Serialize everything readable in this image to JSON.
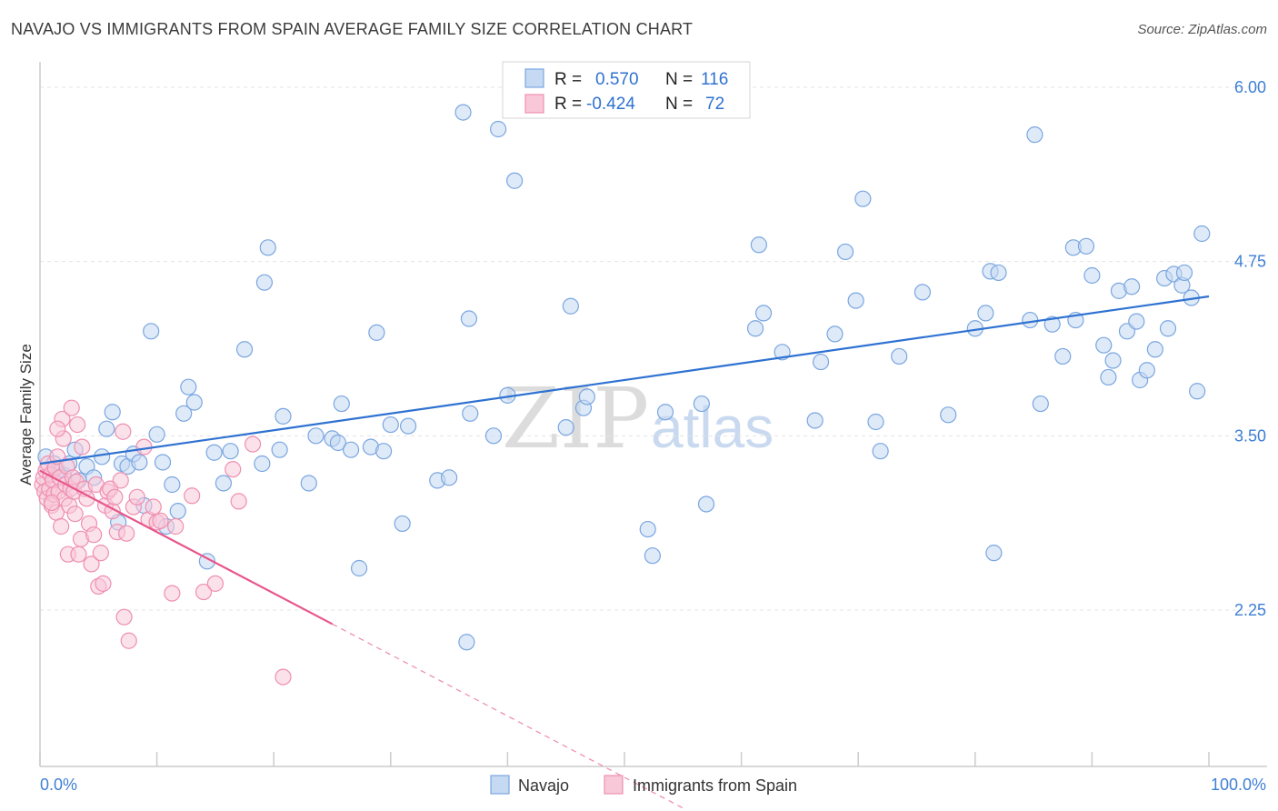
{
  "title": "NAVAJO VS IMMIGRANTS FROM SPAIN AVERAGE FAMILY SIZE CORRELATION CHART",
  "source": "Source: ZipAtlas.com",
  "watermark": {
    "zip": "ZIP",
    "atlas": "atlas"
  },
  "legend": {
    "rows": [
      {
        "r_label": "R =",
        "r_value": "0.570",
        "n_label": "N =",
        "n_value": "116"
      },
      {
        "r_label": "R =",
        "r_value": "-0.424",
        "n_label": "N =",
        "n_value": "72"
      }
    ]
  },
  "bottom_legend": [
    "Navajo",
    "Immigrants from Spain"
  ],
  "chart_data": {
    "type": "scatter",
    "title": "NAVAJO VS IMMIGRANTS FROM SPAIN AVERAGE FAMILY SIZE CORRELATION CHART",
    "xlabel": "",
    "ylabel": "Average Family Size",
    "xlim": [
      0,
      100
    ],
    "ylim": [
      1.0,
      6.25
    ],
    "x_tick_labels": [
      "0.0%",
      "100.0%"
    ],
    "y_ticks": [
      2.25,
      3.5,
      4.75,
      6.0
    ],
    "y_tick_labels": [
      "2.25",
      "3.50",
      "4.75",
      "6.00"
    ],
    "series": [
      {
        "name": "Navajo",
        "color": "#7aa6e0",
        "fill": "#c5d9f3",
        "trend": {
          "x": [
            0,
            100
          ],
          "y": [
            3.3,
            4.5
          ],
          "color": "#2f72d1"
        },
        "points": [
          [
            0.5,
            3.35
          ],
          [
            1.2,
            3.3
          ],
          [
            1.5,
            3.25
          ],
          [
            2.0,
            3.22
          ],
          [
            2.5,
            3.3
          ],
          [
            3.0,
            3.4
          ],
          [
            3.3,
            3.18
          ],
          [
            4.0,
            3.28
          ],
          [
            4.6,
            3.2
          ],
          [
            5.3,
            3.35
          ],
          [
            5.7,
            3.55
          ],
          [
            6.2,
            3.67
          ],
          [
            6.7,
            2.88
          ],
          [
            7.0,
            3.3
          ],
          [
            7.5,
            3.28
          ],
          [
            8.0,
            3.37
          ],
          [
            8.5,
            3.31
          ],
          [
            8.9,
            3.0
          ],
          [
            9.5,
            4.25
          ],
          [
            10.0,
            3.51
          ],
          [
            10.5,
            3.31
          ],
          [
            10.8,
            2.85
          ],
          [
            11.3,
            3.15
          ],
          [
            11.8,
            2.96
          ],
          [
            12.3,
            3.66
          ],
          [
            12.7,
            3.85
          ],
          [
            13.2,
            3.74
          ],
          [
            14.3,
            2.6
          ],
          [
            14.9,
            3.38
          ],
          [
            15.7,
            3.16
          ],
          [
            16.3,
            3.39
          ],
          [
            17.5,
            4.12
          ],
          [
            19.0,
            3.3
          ],
          [
            19.2,
            4.6
          ],
          [
            19.5,
            4.85
          ],
          [
            20.5,
            3.4
          ],
          [
            20.8,
            3.64
          ],
          [
            23.0,
            3.16
          ],
          [
            23.6,
            3.5
          ],
          [
            25.0,
            3.48
          ],
          [
            25.5,
            3.45
          ],
          [
            25.8,
            3.73
          ],
          [
            26.6,
            3.4
          ],
          [
            27.3,
            2.55
          ],
          [
            28.3,
            3.42
          ],
          [
            28.8,
            4.24
          ],
          [
            30.0,
            3.58
          ],
          [
            29.4,
            3.39
          ],
          [
            31.0,
            2.87
          ],
          [
            31.5,
            3.57
          ],
          [
            34.0,
            3.18
          ],
          [
            35.0,
            3.2
          ],
          [
            36.5,
            2.02
          ],
          [
            36.8,
            3.66
          ],
          [
            36.7,
            4.34
          ],
          [
            36.2,
            5.82
          ],
          [
            38.8,
            3.5
          ],
          [
            39.2,
            5.7
          ],
          [
            40.0,
            3.79
          ],
          [
            40.6,
            5.33
          ],
          [
            45.0,
            3.56
          ],
          [
            45.4,
            4.43
          ],
          [
            46.5,
            3.7
          ],
          [
            46.8,
            3.78
          ],
          [
            52.0,
            2.83
          ],
          [
            52.4,
            2.64
          ],
          [
            53.5,
            3.67
          ],
          [
            56.6,
            3.73
          ],
          [
            57.0,
            3.01
          ],
          [
            61.2,
            4.27
          ],
          [
            61.5,
            4.87
          ],
          [
            61.9,
            4.38
          ],
          [
            63.5,
            4.1
          ],
          [
            66.3,
            3.61
          ],
          [
            66.8,
            4.03
          ],
          [
            68.0,
            4.23
          ],
          [
            68.9,
            4.82
          ],
          [
            69.8,
            4.47
          ],
          [
            70.4,
            5.2
          ],
          [
            71.5,
            3.6
          ],
          [
            71.9,
            3.39
          ],
          [
            73.5,
            4.07
          ],
          [
            75.5,
            4.53
          ],
          [
            77.7,
            3.65
          ],
          [
            80.0,
            4.27
          ],
          [
            80.9,
            4.38
          ],
          [
            81.3,
            4.68
          ],
          [
            82.0,
            4.67
          ],
          [
            81.6,
            2.66
          ],
          [
            84.7,
            4.33
          ],
          [
            85.1,
            5.66
          ],
          [
            85.6,
            3.73
          ],
          [
            86.6,
            4.3
          ],
          [
            87.5,
            4.07
          ],
          [
            88.4,
            4.85
          ],
          [
            88.6,
            4.33
          ],
          [
            89.5,
            4.86
          ],
          [
            90.0,
            4.65
          ],
          [
            91.0,
            4.15
          ],
          [
            91.4,
            3.92
          ],
          [
            91.8,
            4.04
          ],
          [
            92.3,
            4.54
          ],
          [
            93.0,
            4.25
          ],
          [
            93.4,
            4.57
          ],
          [
            94.1,
            3.9
          ],
          [
            94.7,
            3.97
          ],
          [
            95.4,
            4.12
          ],
          [
            96.5,
            4.27
          ],
          [
            96.2,
            4.63
          ],
          [
            97.0,
            4.66
          ],
          [
            97.7,
            4.58
          ],
          [
            97.9,
            4.67
          ],
          [
            98.5,
            4.49
          ],
          [
            99.0,
            3.82
          ],
          [
            99.4,
            4.95
          ],
          [
            93.8,
            4.32
          ]
        ]
      },
      {
        "name": "Immigrants from Spain",
        "color": "#ef8fb0",
        "fill": "#f8c8d8",
        "trend": {
          "x": [
            0,
            25
          ],
          "y": [
            3.25,
            2.15
          ],
          "color": "#e8568b"
        },
        "trend_extension": {
          "x": [
            25,
            55
          ],
          "y": [
            2.15,
            0.83
          ]
        },
        "points": [
          [
            0.2,
            3.15
          ],
          [
            0.3,
            3.2
          ],
          [
            0.4,
            3.1
          ],
          [
            0.5,
            3.25
          ],
          [
            0.6,
            3.05
          ],
          [
            0.7,
            3.3
          ],
          [
            0.8,
            3.12
          ],
          [
            0.9,
            3.22
          ],
          [
            1.0,
            3.0
          ],
          [
            1.1,
            3.18
          ],
          [
            1.2,
            3.08
          ],
          [
            1.3,
            3.27
          ],
          [
            1.4,
            2.95
          ],
          [
            1.5,
            3.35
          ],
          [
            1.6,
            3.1
          ],
          [
            1.7,
            3.2
          ],
          [
            1.8,
            2.85
          ],
          [
            1.9,
            3.62
          ],
          [
            2.0,
            3.48
          ],
          [
            2.1,
            3.05
          ],
          [
            2.2,
            3.15
          ],
          [
            2.3,
            3.28
          ],
          [
            2.4,
            2.65
          ],
          [
            2.5,
            3.0
          ],
          [
            2.6,
            3.12
          ],
          [
            2.7,
            3.7
          ],
          [
            2.8,
            3.2
          ],
          [
            2.9,
            3.1
          ],
          [
            3.0,
            2.94
          ],
          [
            3.1,
            3.17
          ],
          [
            3.3,
            2.65
          ],
          [
            3.5,
            2.76
          ],
          [
            3.6,
            3.42
          ],
          [
            3.8,
            3.12
          ],
          [
            4.0,
            3.05
          ],
          [
            4.2,
            2.87
          ],
          [
            4.4,
            2.58
          ],
          [
            4.6,
            2.79
          ],
          [
            4.8,
            3.15
          ],
          [
            5.0,
            2.42
          ],
          [
            5.2,
            2.66
          ],
          [
            5.4,
            2.44
          ],
          [
            5.6,
            3.0
          ],
          [
            5.8,
            3.1
          ],
          [
            6.0,
            3.12
          ],
          [
            6.2,
            2.96
          ],
          [
            6.4,
            3.06
          ],
          [
            6.6,
            2.81
          ],
          [
            6.9,
            3.18
          ],
          [
            7.1,
            3.53
          ],
          [
            7.2,
            2.2
          ],
          [
            7.4,
            2.8
          ],
          [
            7.6,
            2.03
          ],
          [
            8.0,
            2.99
          ],
          [
            8.3,
            3.06
          ],
          [
            8.9,
            3.42
          ],
          [
            9.3,
            2.9
          ],
          [
            9.7,
            2.99
          ],
          [
            10.0,
            2.88
          ],
          [
            10.3,
            2.89
          ],
          [
            11.3,
            2.37
          ],
          [
            11.6,
            2.85
          ],
          [
            13.0,
            3.07
          ],
          [
            14.0,
            2.38
          ],
          [
            15.0,
            2.44
          ],
          [
            16.5,
            3.26
          ],
          [
            18.2,
            3.44
          ],
          [
            17.0,
            3.03
          ],
          [
            20.8,
            1.77
          ],
          [
            1.0,
            3.02
          ],
          [
            1.5,
            3.55
          ],
          [
            3.2,
            3.58
          ]
        ]
      }
    ]
  }
}
